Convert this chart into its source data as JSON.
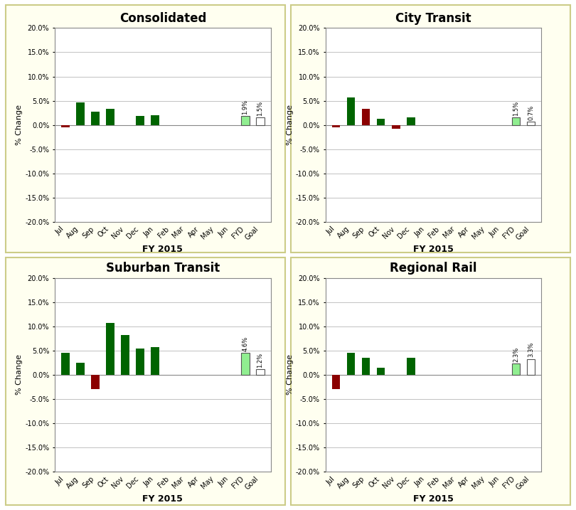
{
  "panels": [
    {
      "title": "Consolidated",
      "categories": [
        "Jul",
        "Aug",
        "Sep",
        "Oct",
        "Nov",
        "Dec",
        "Jan",
        "Feb",
        "Mar",
        "Apr",
        "May",
        "Jun",
        "FYD",
        "Goal"
      ],
      "values": [
        -0.5,
        4.7,
        2.8,
        3.4,
        0.0,
        1.9,
        2.0,
        0.0,
        0.0,
        0.0,
        0.0,
        0.0,
        1.9,
        1.5
      ],
      "fyd_label": "1.9%",
      "goal_label": "1.5%",
      "bar_colors": [
        "#8B0000",
        "#006400",
        "#006400",
        "#006400",
        "#ffffff",
        "#006400",
        "#006400",
        "#ffffff",
        "#ffffff",
        "#ffffff",
        "#ffffff",
        "#ffffff",
        "#90EE90",
        "#ffffff"
      ]
    },
    {
      "title": "City Transit",
      "categories": [
        "Jul",
        "Aug",
        "Sep",
        "Oct",
        "Nov",
        "Dec",
        "Jan",
        "Feb",
        "Mar",
        "Apr",
        "May",
        "Jun",
        "FYD",
        "Goal"
      ],
      "values": [
        -0.5,
        5.7,
        3.4,
        1.2,
        -0.8,
        1.5,
        0.0,
        0.0,
        0.0,
        0.0,
        0.0,
        0.0,
        1.5,
        0.7
      ],
      "fyd_label": "1.5%",
      "goal_label": "0.7%",
      "bar_colors": [
        "#8B0000",
        "#006400",
        "#8B0000",
        "#006400",
        "#8B0000",
        "#006400",
        "#ffffff",
        "#ffffff",
        "#ffffff",
        "#ffffff",
        "#ffffff",
        "#ffffff",
        "#90EE90",
        "#ffffff"
      ]
    },
    {
      "title": "Suburban Transit",
      "categories": [
        "Jul",
        "Aug",
        "Sep",
        "Oct",
        "Nov",
        "Dec",
        "Jan",
        "Feb",
        "Mar",
        "Apr",
        "May",
        "Jun",
        "FYD",
        "Goal"
      ],
      "values": [
        4.6,
        2.5,
        -3.0,
        10.7,
        8.2,
        5.5,
        5.7,
        0.0,
        0.0,
        0.0,
        0.0,
        0.0,
        4.6,
        1.2
      ],
      "fyd_label": "4.6%",
      "goal_label": "1.2%",
      "bar_colors": [
        "#006400",
        "#006400",
        "#8B0000",
        "#006400",
        "#006400",
        "#006400",
        "#006400",
        "#ffffff",
        "#ffffff",
        "#ffffff",
        "#ffffff",
        "#ffffff",
        "#90EE90",
        "#ffffff"
      ]
    },
    {
      "title": "Regional Rail",
      "categories": [
        "Jul",
        "Aug",
        "Sep",
        "Oct",
        "Nov",
        "Dec",
        "Jan",
        "Feb",
        "Mar",
        "Apr",
        "May",
        "Jun",
        "FYD",
        "Goal"
      ],
      "values": [
        -3.0,
        4.5,
        3.5,
        1.5,
        0.0,
        3.5,
        0.0,
        0.0,
        0.0,
        0.0,
        0.0,
        0.0,
        2.3,
        3.3
      ],
      "fyd_label": "2.3%",
      "goal_label": "3.3%",
      "bar_colors": [
        "#8B0000",
        "#006400",
        "#006400",
        "#006400",
        "#ffffff",
        "#006400",
        "#ffffff",
        "#ffffff",
        "#ffffff",
        "#ffffff",
        "#ffffff",
        "#ffffff",
        "#90EE90",
        "#ffffff"
      ]
    }
  ],
  "panel_bg": "#FFFFF0",
  "chart_bg": "#FFFFFF",
  "outer_bg": "#FFFFFF",
  "ylim": [
    -20.0,
    20.0
  ],
  "yticks": [
    -20.0,
    -15.0,
    -10.0,
    -5.0,
    0.0,
    5.0,
    10.0,
    15.0,
    20.0
  ],
  "xlabel": "FY 2015",
  "ylabel": "% Change",
  "title_fontsize": 12,
  "tick_fontsize": 7,
  "ylabel_fontsize": 8,
  "xlabel_fontsize": 9
}
